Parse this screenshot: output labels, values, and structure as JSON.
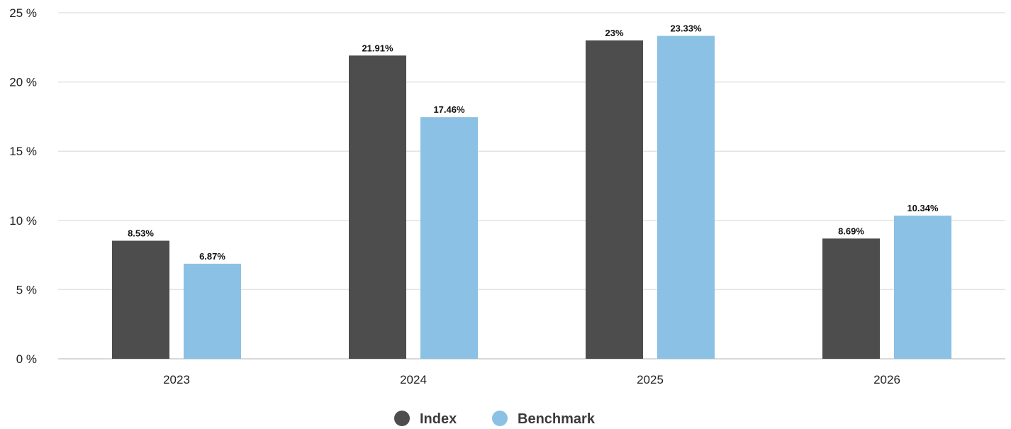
{
  "chart_data": {
    "type": "bar",
    "categories": [
      "2023",
      "2024",
      "2025",
      "2026"
    ],
    "series": [
      {
        "name": "Index",
        "color": "#4d4d4d",
        "values": [
          8.53,
          21.91,
          23.0,
          8.69
        ],
        "labels": [
          "8.53%",
          "21.91%",
          "23%",
          "8.69%"
        ]
      },
      {
        "name": "Benchmark",
        "color": "#8bc1e4",
        "values": [
          6.87,
          17.46,
          23.33,
          10.34
        ],
        "labels": [
          "6.87%",
          "17.46%",
          "23.33%",
          "10.34%"
        ]
      }
    ],
    "yticks": [
      0,
      5,
      10,
      15,
      20,
      25
    ],
    "ytick_labels": [
      "0 %",
      "5 %",
      "10 %",
      "15 %",
      "20 %",
      "25 %"
    ],
    "ylim": [
      0,
      25
    ],
    "grid": true,
    "legend_position": "bottom-center",
    "title": "",
    "xlabel": "",
    "ylabel": ""
  }
}
